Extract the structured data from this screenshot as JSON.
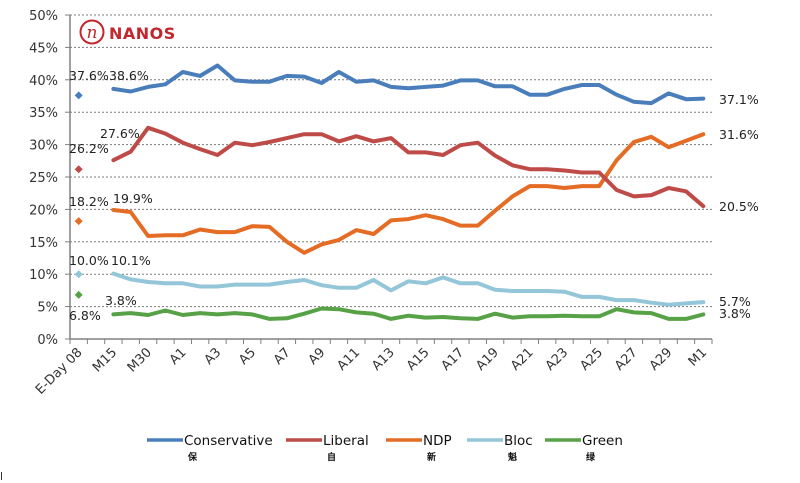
{
  "logo": {
    "text": "NANOS",
    "glyph": "n",
    "color": "#c1272d"
  },
  "chart_data": {
    "type": "line",
    "title": "",
    "xlabel": "",
    "ylabel": "",
    "ylim": [
      0,
      50
    ],
    "yticks": [
      0,
      5,
      10,
      15,
      20,
      25,
      30,
      35,
      40,
      45,
      50
    ],
    "ytick_labels": [
      "0%",
      "5%",
      "10%",
      "15%",
      "20%",
      "25%",
      "30%",
      "35%",
      "40%",
      "45%",
      "50%"
    ],
    "grid": "horizontal dotted",
    "legend_position": "bottom",
    "categories": [
      "E-Day 08",
      "",
      "M15",
      "",
      "M30",
      "",
      "A1",
      "",
      "A3",
      "",
      "A5",
      "",
      "A7",
      "",
      "A9",
      "",
      "A11",
      "",
      "A13",
      "",
      "A15",
      "",
      "A17",
      "",
      "A19",
      "",
      "A21",
      "",
      "A23",
      "",
      "A25",
      "",
      "A27",
      "",
      "A29",
      "",
      "M1"
    ],
    "x_tick_labels": [
      {
        "index": 0,
        "label": "E-Day 08"
      },
      {
        "index": 2,
        "label": "M15"
      },
      {
        "index": 4,
        "label": "M30"
      },
      {
        "index": 6,
        "label": "A1"
      },
      {
        "index": 8,
        "label": "A3"
      },
      {
        "index": 10,
        "label": "A5"
      },
      {
        "index": 12,
        "label": "A7"
      },
      {
        "index": 14,
        "label": "A9"
      },
      {
        "index": 16,
        "label": "A11"
      },
      {
        "index": 18,
        "label": "A13"
      },
      {
        "index": 20,
        "label": "A15"
      },
      {
        "index": 22,
        "label": "A17"
      },
      {
        "index": 24,
        "label": "A19"
      },
      {
        "index": 26,
        "label": "A21"
      },
      {
        "index": 28,
        "label": "A23"
      },
      {
        "index": 30,
        "label": "A25"
      },
      {
        "index": 32,
        "label": "A27"
      },
      {
        "index": 34,
        "label": "A29"
      },
      {
        "index": 36,
        "label": "M1"
      }
    ],
    "series_start_index": 2,
    "series": [
      {
        "name": "Conservative",
        "sub": "保",
        "color": "#4a7ebb",
        "eday": 37.6,
        "eday_label": "37.6%",
        "first_label": "38.6%",
        "last_label": "37.1%",
        "values": [
          38.6,
          38.2,
          38.9,
          39.3,
          41.2,
          40.6,
          42.2,
          39.9,
          39.7,
          39.7,
          40.6,
          40.5,
          39.5,
          41.2,
          39.7,
          39.9,
          38.9,
          38.7,
          38.9,
          39.1,
          39.9,
          39.9,
          39.0,
          39.0,
          37.7,
          37.7,
          38.6,
          39.2,
          39.2,
          37.7,
          36.6,
          36.4,
          37.9,
          37.0,
          37.1
        ]
      },
      {
        "name": "Liberal",
        "sub": "自",
        "color": "#be4b48",
        "eday": 26.2,
        "eday_label": "26.2%",
        "first_label": "27.6%",
        "last_label": "20.5%",
        "values": [
          27.6,
          28.9,
          32.6,
          31.7,
          30.3,
          29.3,
          28.4,
          30.3,
          29.9,
          30.4,
          31.0,
          31.6,
          31.6,
          30.5,
          31.3,
          30.5,
          31.0,
          28.8,
          28.8,
          28.4,
          29.9,
          30.3,
          28.3,
          26.8,
          26.2,
          26.2,
          26.0,
          25.7,
          25.7,
          23.0,
          22.0,
          22.2,
          23.3,
          22.8,
          20.5
        ]
      },
      {
        "name": "NDP",
        "sub": "新",
        "color": "#e46c24",
        "eday": 18.2,
        "eday_label": "18.2%",
        "first_label": "19.9%",
        "last_label": "31.6%",
        "values": [
          19.9,
          19.6,
          15.9,
          16.0,
          16.0,
          16.9,
          16.5,
          16.5,
          17.4,
          17.3,
          15.0,
          13.3,
          14.6,
          15.3,
          16.8,
          16.2,
          18.3,
          18.5,
          19.1,
          18.5,
          17.5,
          17.5,
          19.8,
          22.0,
          23.6,
          23.6,
          23.3,
          23.6,
          23.6,
          27.6,
          30.4,
          31.2,
          29.6,
          30.6,
          31.6
        ]
      },
      {
        "name": "Bloc",
        "sub": "魁",
        "color": "#93c6d8",
        "eday": 10.0,
        "eday_label": "10.0%",
        "first_label": "10.1%",
        "last_label": "5.7%",
        "values": [
          10.1,
          9.2,
          8.8,
          8.6,
          8.6,
          8.1,
          8.1,
          8.4,
          8.4,
          8.4,
          8.8,
          9.1,
          8.3,
          7.9,
          7.9,
          9.1,
          7.5,
          8.9,
          8.6,
          9.5,
          8.6,
          8.6,
          7.6,
          7.4,
          7.4,
          7.4,
          7.3,
          6.5,
          6.5,
          6.0,
          6.0,
          5.6,
          5.3,
          5.5,
          5.7
        ]
      },
      {
        "name": "Green",
        "sub": "绿",
        "color": "#57a146",
        "eday": 6.8,
        "eday_label": "6.8%",
        "first_label": "3.8%",
        "last_label": "3.8%",
        "values": [
          3.8,
          4.0,
          3.7,
          4.4,
          3.7,
          4.0,
          3.8,
          4.0,
          3.8,
          3.1,
          3.2,
          3.9,
          4.7,
          4.6,
          4.1,
          3.9,
          3.1,
          3.6,
          3.3,
          3.4,
          3.2,
          3.1,
          3.9,
          3.3,
          3.5,
          3.5,
          3.6,
          3.5,
          3.5,
          4.6,
          4.1,
          4.0,
          3.1,
          3.1,
          3.8
        ]
      }
    ]
  }
}
